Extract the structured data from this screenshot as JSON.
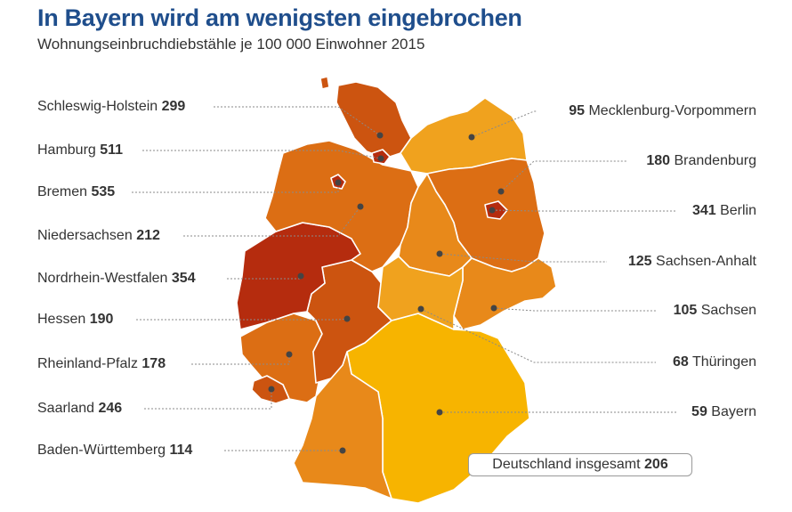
{
  "title": "In Bayern wird am wenigsten eingebrochen",
  "subtitle": "Wohnungseinbruchdiebstähle je 100 000 Einwohner 2015",
  "total": {
    "label": "Deutschland insgesamt",
    "value": "206"
  },
  "colors": {
    "lowest": "#f7b400",
    "low": "#f0a21e",
    "mid_low": "#e8891a",
    "mid": "#dc6e14",
    "mid_high": "#cc5410",
    "high": "#b52c0e"
  },
  "states": [
    {
      "id": "sh",
      "name": "Schleswig-Holstein",
      "value": "299"
    },
    {
      "id": "hh",
      "name": "Hamburg",
      "value": "511"
    },
    {
      "id": "hb",
      "name": "Bremen",
      "value": "535"
    },
    {
      "id": "ni",
      "name": "Niedersachsen",
      "value": "212"
    },
    {
      "id": "nw",
      "name": "Nordrhein-Westfalen",
      "value": "354"
    },
    {
      "id": "he",
      "name": "Hessen",
      "value": "190"
    },
    {
      "id": "rp",
      "name": "Rheinland-Pfalz",
      "value": "178"
    },
    {
      "id": "sl",
      "name": "Saarland",
      "value": "246"
    },
    {
      "id": "bw",
      "name": "Baden-Württemberg",
      "value": "114"
    },
    {
      "id": "mv",
      "name": "Mecklenburg-Vorpommern",
      "value": "95"
    },
    {
      "id": "bb",
      "name": "Brandenburg",
      "value": "180"
    },
    {
      "id": "be",
      "name": "Berlin",
      "value": "341"
    },
    {
      "id": "st",
      "name": "Sachsen-Anhalt",
      "value": "125"
    },
    {
      "id": "sn",
      "name": "Sachsen",
      "value": "105"
    },
    {
      "id": "th",
      "name": "Thüringen",
      "value": "68"
    },
    {
      "id": "by",
      "name": "Bayern",
      "value": "59"
    }
  ]
}
